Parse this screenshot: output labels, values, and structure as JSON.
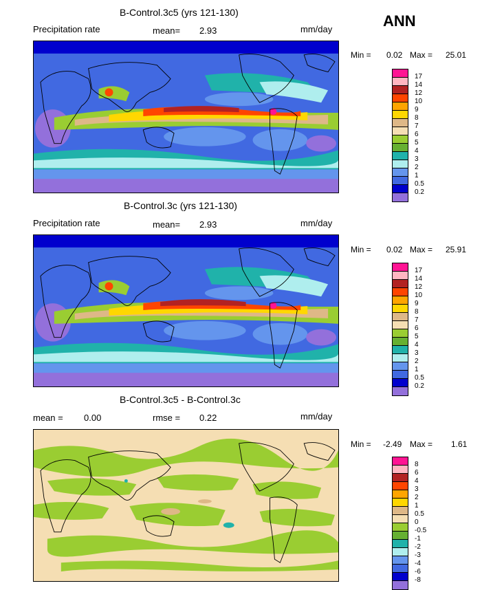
{
  "season": "ANN",
  "panels": [
    {
      "title": "B-Control.3c5 (yrs 121-130)",
      "left_label": "Precipitation rate",
      "stat_label": "mean=",
      "stat_value": "2.93",
      "units": "mm/day",
      "min_label": "Min =",
      "min_value": "0.02",
      "max_label": "Max =",
      "max_value": "25.01",
      "levels": [
        "17",
        "14",
        "12",
        "10",
        "9",
        "8",
        "7",
        "6",
        "5",
        "4",
        "3",
        "2",
        "1",
        "0.5",
        "0.2"
      ],
      "colors": [
        "#ff1493",
        "#ffb6c1",
        "#b22222",
        "#ff4500",
        "#ffa500",
        "#ffd700",
        "#deb887",
        "#f5deb3",
        "#9acd32",
        "#66b032",
        "#20b2aa",
        "#afeeee",
        "#6495ed",
        "#4169e1",
        "#0000cd",
        "#9370db"
      ]
    },
    {
      "title": "B-Control.3c (yrs 121-130)",
      "left_label": "Precipitation rate",
      "stat_label": "mean=",
      "stat_value": "2.93",
      "units": "mm/day",
      "min_label": "Min =",
      "min_value": "0.02",
      "max_label": "Max =",
      "max_value": "25.91",
      "levels": [
        "17",
        "14",
        "12",
        "10",
        "9",
        "8",
        "7",
        "6",
        "5",
        "4",
        "3",
        "2",
        "1",
        "0.5",
        "0.2"
      ],
      "colors": [
        "#ff1493",
        "#ffb6c1",
        "#b22222",
        "#ff4500",
        "#ffa500",
        "#ffd700",
        "#deb887",
        "#f5deb3",
        "#9acd32",
        "#66b032",
        "#20b2aa",
        "#afeeee",
        "#6495ed",
        "#4169e1",
        "#0000cd",
        "#9370db"
      ]
    },
    {
      "title": "B-Control.3c5 - B-Control.3c",
      "left_label": "mean =",
      "left_value": "0.00",
      "stat_label": "rmse =",
      "stat_value": "0.22",
      "units": "mm/day",
      "min_label": "Min =",
      "min_value": "-2.49",
      "max_label": "Max =",
      "max_value": "1.61",
      "levels": [
        "8",
        "6",
        "4",
        "3",
        "2",
        "1",
        "0.5",
        "0",
        "-0.5",
        "-1",
        "-2",
        "-3",
        "-4",
        "-6",
        "-8"
      ],
      "colors": [
        "#ff1493",
        "#ffb6c1",
        "#b22222",
        "#ff4500",
        "#ffa500",
        "#ffd700",
        "#deb887",
        "#f5deb3",
        "#9acd32",
        "#66b032",
        "#20b2aa",
        "#afeeee",
        "#6495ed",
        "#4169e1",
        "#0000cd",
        "#9370db"
      ]
    }
  ]
}
